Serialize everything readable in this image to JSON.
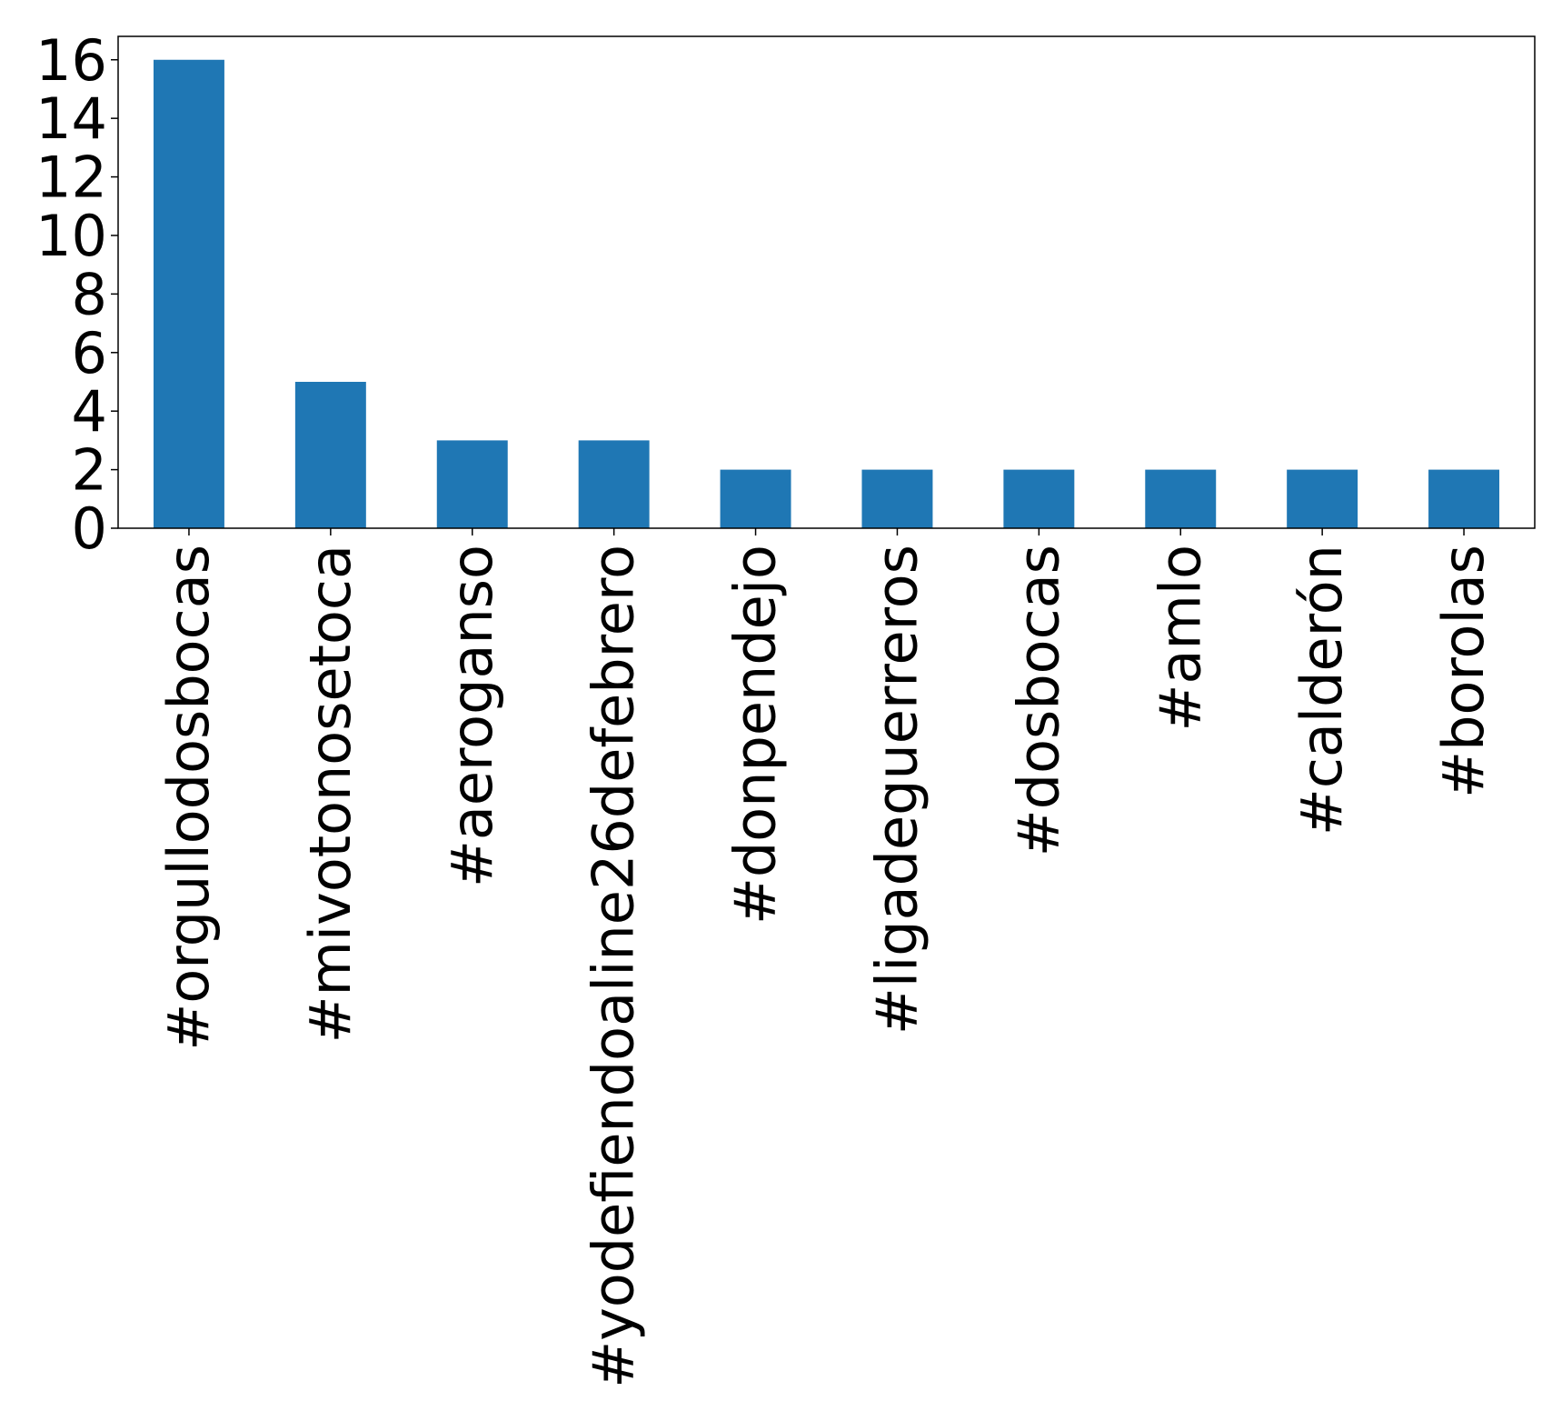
{
  "chart_data": {
    "type": "bar",
    "categories": [
      "#orgullodosbocas",
      "#mivotonosetoca",
      "#aeroganso",
      "#yodefiendoaline26defebrero",
      "#donpendejo",
      "#ligadeguerreros",
      "#dosbocas",
      "#amlo",
      "#calderón",
      "#borolas"
    ],
    "values": [
      16,
      5,
      3,
      3,
      2,
      2,
      2,
      2,
      2,
      2
    ],
    "ylim": [
      0,
      16.8
    ],
    "yticks": [
      "0",
      "2",
      "4",
      "6",
      "8",
      "10",
      "12",
      "14",
      "16"
    ],
    "title": "",
    "xlabel": "",
    "ylabel": "",
    "bar_color": "#1f77b4",
    "grid": false,
    "legend": false
  }
}
